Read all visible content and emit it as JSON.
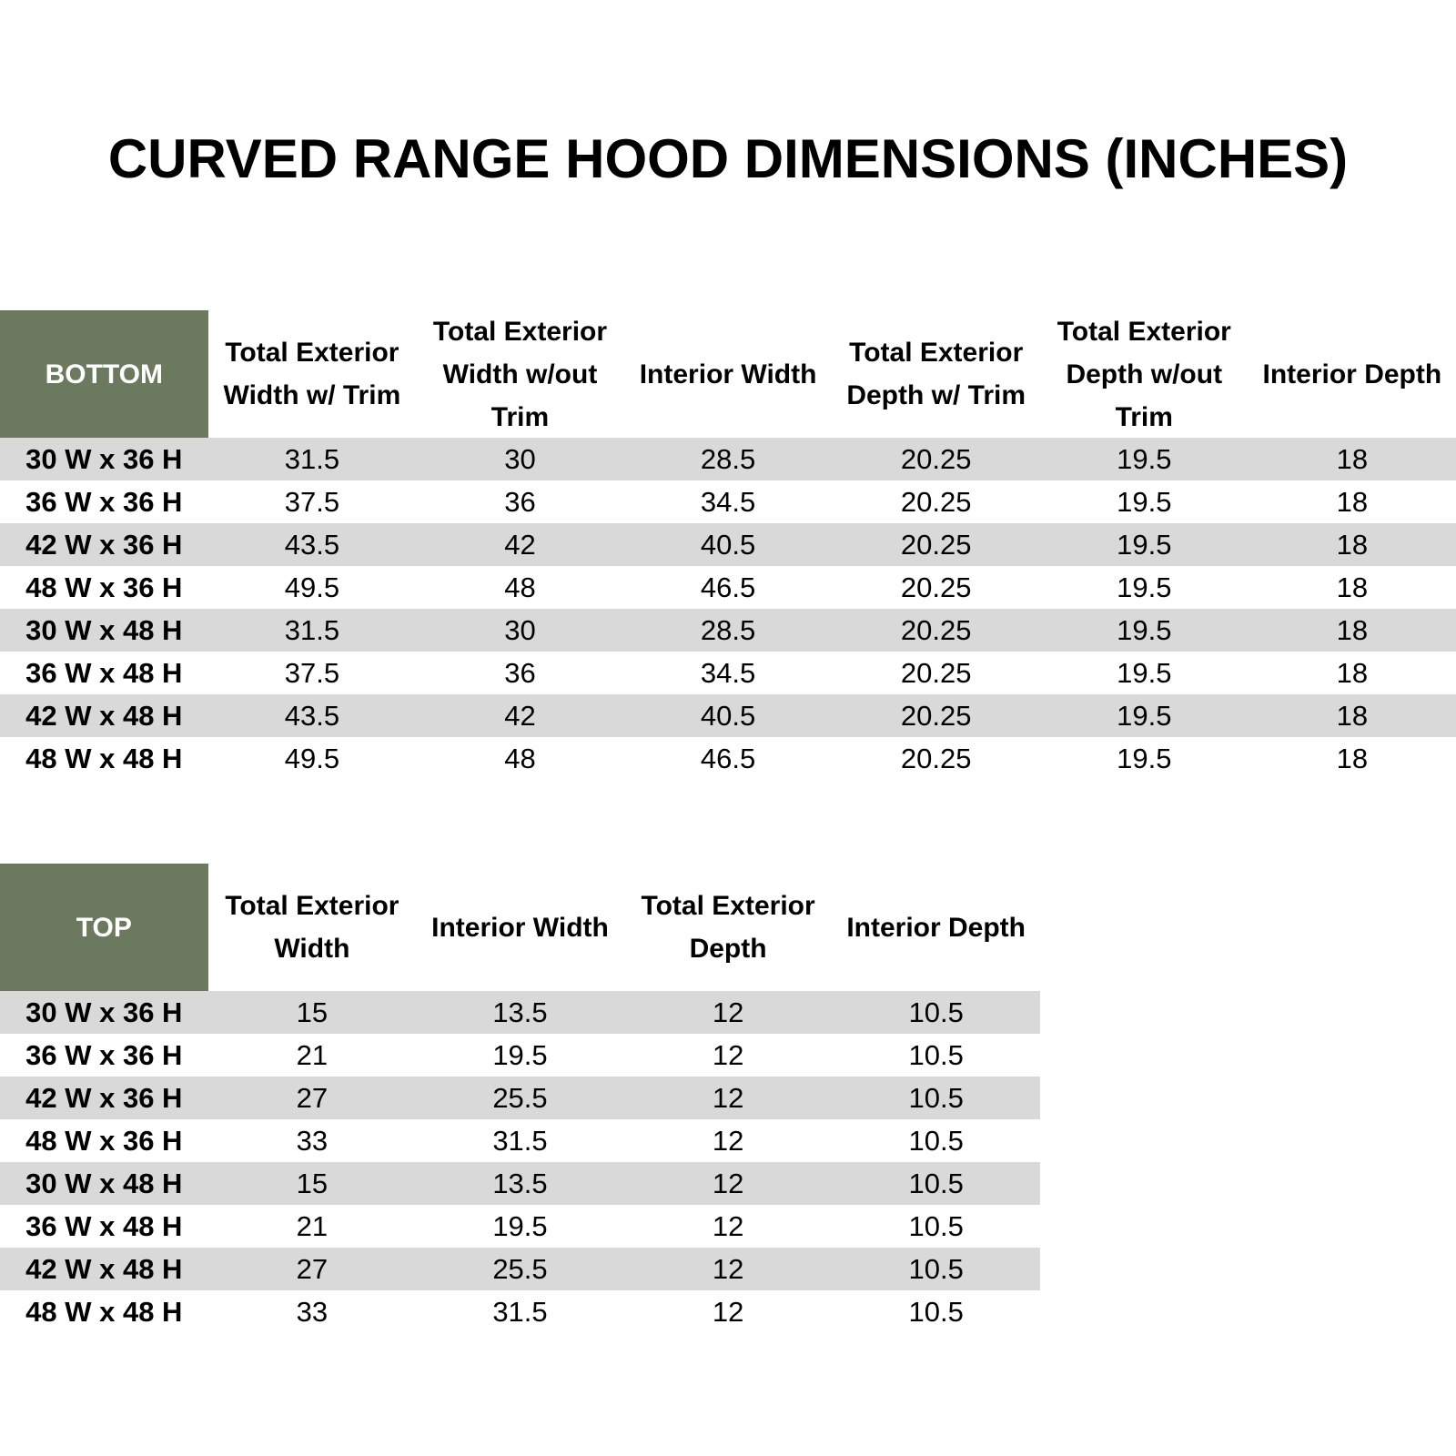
{
  "title": "CURVED RANGE HOOD DIMENSIONS (INCHES)",
  "tables": [
    {
      "header": [
        "BOTTOM",
        "Total Exterior Width w/ Trim",
        "Total Exterior Width w/out Trim",
        "Interior Width",
        "Total Exterior Depth w/ Trim",
        "Total Exterior Depth w/out Trim",
        "Interior Depth"
      ],
      "rows": [
        [
          "30 W x 36 H",
          31.5,
          30,
          28.5,
          20.25,
          19.5,
          18
        ],
        [
          "36 W x 36 H",
          37.5,
          36,
          34.5,
          20.25,
          19.5,
          18
        ],
        [
          "42 W x 36 H",
          43.5,
          42,
          40.5,
          20.25,
          19.5,
          18
        ],
        [
          "48 W x 36 H",
          49.5,
          48,
          46.5,
          20.25,
          19.5,
          18
        ],
        [
          "30 W x 48 H",
          31.5,
          30,
          28.5,
          20.25,
          19.5,
          18
        ],
        [
          "36 W x 48 H",
          37.5,
          36,
          34.5,
          20.25,
          19.5,
          18
        ],
        [
          "42 W x 48 H",
          43.5,
          42,
          40.5,
          20.25,
          19.5,
          18
        ],
        [
          "48 W x 48 H",
          49.5,
          48,
          46.5,
          20.25,
          19.5,
          18
        ]
      ]
    },
    {
      "header": [
        "TOP",
        "Total Exterior Width",
        "Interior Width",
        "Total Exterior Depth",
        "Interior Depth"
      ],
      "rows": [
        [
          "30 W x 36 H",
          15,
          13.5,
          12,
          10.5
        ],
        [
          "36 W x 36 H",
          21,
          19.5,
          12,
          10.5
        ],
        [
          "42 W x 36 H",
          27,
          25.5,
          12,
          10.5
        ],
        [
          "48 W x 36 H",
          33,
          31.5,
          12,
          10.5
        ],
        [
          "30 W x 48 H",
          15,
          13.5,
          12,
          10.5
        ],
        [
          "36 W x 48 H",
          21,
          19.5,
          12,
          10.5
        ],
        [
          "42 W x 48 H",
          27,
          25.5,
          12,
          10.5
        ],
        [
          "48 W x 48 H",
          33,
          31.5,
          12,
          10.5
        ]
      ]
    }
  ]
}
